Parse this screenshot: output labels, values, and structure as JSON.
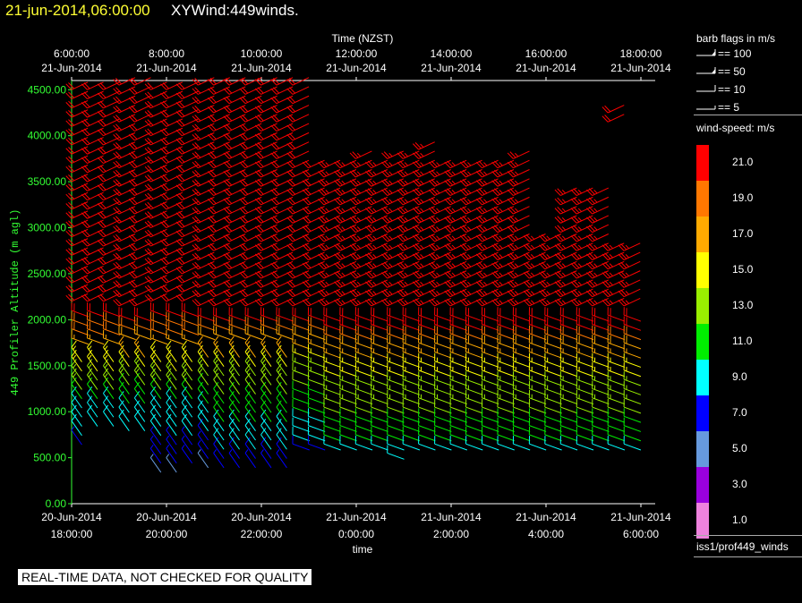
{
  "header": {
    "date_label": "21-jun-2014,06:00:00",
    "title": "XYWind:449winds."
  },
  "chart_data": {
    "type": "wind-barb",
    "top_axis": {
      "title": "Time (NZST)",
      "ticks": [
        {
          "time": "6:00:00",
          "date": "21-Jun-2014"
        },
        {
          "time": "8:00:00",
          "date": "21-Jun-2014"
        },
        {
          "time": "10:00:00",
          "date": "21-Jun-2014"
        },
        {
          "time": "12:00:00",
          "date": "21-Jun-2014"
        },
        {
          "time": "14:00:00",
          "date": "21-Jun-2014"
        },
        {
          "time": "16:00:00",
          "date": "21-Jun-2014"
        },
        {
          "time": "18:00:00",
          "date": "21-Jun-2014"
        }
      ]
    },
    "bottom_axis": {
      "title": "time",
      "ticks": [
        {
          "date": "20-Jun-2014",
          "time": "18:00:00"
        },
        {
          "date": "20-Jun-2014",
          "time": "20:00:00"
        },
        {
          "date": "20-Jun-2014",
          "time": "22:00:00"
        },
        {
          "date": "21-Jun-2014",
          "time": "0:00:00"
        },
        {
          "date": "21-Jun-2014",
          "time": "2:00:00"
        },
        {
          "date": "21-Jun-2014",
          "time": "4:00:00"
        },
        {
          "date": "21-Jun-2014",
          "time": "6:00:00"
        }
      ]
    },
    "y_axis": {
      "title": "449 Profiler Altitude (m agl)",
      "ticks": [
        "0.00",
        "500.00",
        "1000.00",
        "1500.00",
        "2000.00",
        "2500.00",
        "3000.00",
        "3500.00",
        "4000.00",
        "4500.00"
      ],
      "range": [
        0,
        4600
      ]
    },
    "time_range_hours": [
      0,
      12.5
    ],
    "profiles": [
      {
        "t": 0.0,
        "top": 4550,
        "low": 800,
        "hi_top": 0
      },
      {
        "t": 0.33,
        "top": 4550,
        "low": 1000,
        "hi_top": 0
      },
      {
        "t": 0.67,
        "top": 4550,
        "low": 1000,
        "hi_top": 0
      },
      {
        "t": 1.0,
        "top": 4550,
        "low": 950,
        "hi_top": 0
      },
      {
        "t": 1.33,
        "top": 4550,
        "low": 950,
        "hi_top": 0
      },
      {
        "t": 1.67,
        "top": 4550,
        "low": 500,
        "hi_top": 0
      },
      {
        "t": 2.0,
        "top": 4550,
        "low": 500,
        "hi_top": 0
      },
      {
        "t": 2.33,
        "top": 4550,
        "low": 600,
        "hi_top": 0
      },
      {
        "t": 2.67,
        "top": 4550,
        "low": 550,
        "hi_top": 0
      },
      {
        "t": 3.0,
        "top": 4550,
        "low": 550,
        "hi_top": 0
      },
      {
        "t": 3.33,
        "top": 4550,
        "low": 550,
        "hi_top": 0
      },
      {
        "t": 3.67,
        "top": 4550,
        "low": 550,
        "hi_top": 0
      },
      {
        "t": 4.0,
        "top": 4550,
        "low": 550,
        "hi_top": 0
      },
      {
        "t": 4.33,
        "top": 4550,
        "low": 550,
        "hi_top": 0
      },
      {
        "t": 4.67,
        "top": 4550,
        "low": 650,
        "hi_top": 0
      },
      {
        "t": 5.0,
        "top": 3700,
        "low": 650,
        "hi_top": 0
      },
      {
        "t": 5.33,
        "top": 3700,
        "low": 650,
        "hi_top": 0
      },
      {
        "t": 5.67,
        "top": 3700,
        "low": 650,
        "hi_top": 0
      },
      {
        "t": 6.0,
        "top": 3750,
        "low": 650,
        "hi_top": 0
      },
      {
        "t": 6.33,
        "top": 3700,
        "low": 650,
        "hi_top": 0
      },
      {
        "t": 6.67,
        "top": 3750,
        "low": 550,
        "hi_top": 0
      },
      {
        "t": 7.0,
        "top": 3750,
        "low": 650,
        "hi_top": 0
      },
      {
        "t": 7.33,
        "top": 3850,
        "low": 650,
        "hi_top": 0
      },
      {
        "t": 7.67,
        "top": 3700,
        "low": 650,
        "hi_top": 0
      },
      {
        "t": 8.0,
        "top": 3700,
        "low": 650,
        "hi_top": 0
      },
      {
        "t": 8.33,
        "top": 3700,
        "low": 650,
        "hi_top": 0
      },
      {
        "t": 8.67,
        "top": 3700,
        "low": 650,
        "hi_top": 0
      },
      {
        "t": 9.0,
        "top": 3700,
        "low": 650,
        "hi_top": 0
      },
      {
        "t": 9.33,
        "top": 3750,
        "low": 650,
        "hi_top": 0
      },
      {
        "t": 9.67,
        "top": 2900,
        "low": 650,
        "hi_top": 0
      },
      {
        "t": 10.0,
        "top": 2900,
        "low": 650,
        "hi_top": 0
      },
      {
        "t": 10.33,
        "top": 3350,
        "low": 650,
        "hi_top": 0
      },
      {
        "t": 10.67,
        "top": 3350,
        "low": 650,
        "hi_top": 0
      },
      {
        "t": 11.0,
        "top": 3350,
        "low": 650,
        "hi_top": 0
      },
      {
        "t": 11.33,
        "top": 2800,
        "low": 650,
        "hi_top": 4150
      },
      {
        "t": 11.67,
        "top": 2800,
        "low": 650,
        "hi_top": 0
      }
    ],
    "level_step_m": 100,
    "color_scale": {
      "breaks": [
        2,
        4,
        6,
        8,
        10,
        12,
        14,
        16,
        18,
        20
      ],
      "colors": [
        "#ee82dd",
        "#9900dd",
        "#6699dd",
        "#0000ff",
        "#00ffff",
        "#00ee00",
        "#99ee00",
        "#ffff00",
        "#ffaa00",
        "#ff7700",
        "#ff0000"
      ]
    }
  },
  "legend": {
    "barb_title": "barb flags in m/s",
    "barbs": [
      {
        "label": "== 100",
        "kind": "flag"
      },
      {
        "label": "== 50",
        "kind": "pennant"
      },
      {
        "label": "== 10",
        "kind": "full"
      },
      {
        "label": "== 5",
        "kind": "half"
      }
    ],
    "colorbar_title": "wind-speed: m/s",
    "colorbar": [
      {
        "label": "21.0",
        "color": "#ff0000"
      },
      {
        "label": "19.0",
        "color": "#ff7700"
      },
      {
        "label": "17.0",
        "color": "#ffaa00"
      },
      {
        "label": "15.0",
        "color": "#ffff00"
      },
      {
        "label": "13.0",
        "color": "#99ee00"
      },
      {
        "label": "11.0",
        "color": "#00ee00"
      },
      {
        "label": "9.0",
        "color": "#00ffff"
      },
      {
        "label": "7.0",
        "color": "#0000ff"
      },
      {
        "label": "5.0",
        "color": "#6699dd"
      },
      {
        "label": "3.0",
        "color": "#9900dd"
      },
      {
        "label": "1.0",
        "color": "#ee82dd"
      }
    ],
    "footer": "iss1/prof449_winds"
  },
  "notice": "REAL-TIME DATA, NOT CHECKED FOR QUALITY"
}
